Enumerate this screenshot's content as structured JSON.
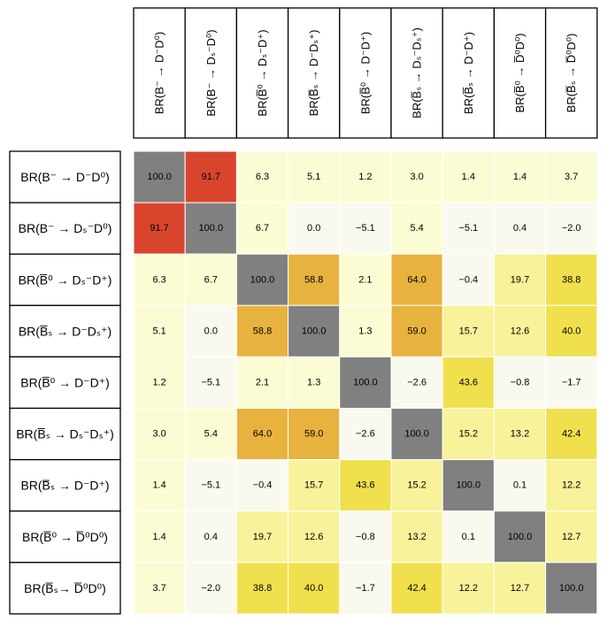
{
  "chart_data": {
    "type": "heatmap",
    "title": "",
    "column_labels": [
      "BR(B⁻ → D⁻D⁰)",
      "BR(B⁻ → Dₛ⁻D⁰)",
      "BR(B̅⁰ → Dₛ⁻D⁺)",
      "BR(B̅ₛ → D⁻Dₛ⁺)",
      "BR(B̅⁰ → D⁻D⁺)",
      "BR(B̅ₛ → Dₛ⁻Dₛ⁺)",
      "BR(B̅ₛ → D⁻D⁺)",
      "BR(B̅⁰ → D̅⁰D⁰)",
      "BR(B̅ₛ → D̅⁰D⁰)"
    ],
    "row_labels": [
      "BR(B⁻ → D⁻D⁰)",
      "BR(B⁻ → Dₛ⁻D⁰)",
      "BR(B̅⁰ → Dₛ⁻D⁺)",
      "BR(B̅ₛ → D⁻Dₛ⁺)",
      "BR(B̅⁰ → D⁻D⁺)",
      "BR(B̅ₛ → Dₛ⁻Dₛ⁺)",
      "BR(B̅ₛ → D⁻D⁺)",
      "BR(B̅⁰ → D̅⁰D⁰)",
      "BR(B̅ₛ→ D̅⁰D⁰)"
    ],
    "values": [
      [
        100.0,
        91.7,
        6.3,
        5.1,
        1.2,
        3.0,
        1.4,
        1.4,
        3.7
      ],
      [
        91.7,
        100.0,
        6.7,
        -0.0,
        -5.1,
        5.4,
        -5.1,
        0.4,
        -2.0
      ],
      [
        6.3,
        6.7,
        100.0,
        58.8,
        2.1,
        64.0,
        -0.4,
        19.7,
        38.8
      ],
      [
        5.1,
        -0.0,
        58.8,
        100.0,
        1.3,
        59.0,
        15.7,
        12.6,
        40.0
      ],
      [
        1.2,
        -5.1,
        2.1,
        1.3,
        100.0,
        -2.6,
        43.6,
        -0.8,
        -1.7
      ],
      [
        3.0,
        5.4,
        64.0,
        59.0,
        -2.6,
        100.0,
        15.2,
        13.2,
        42.4
      ],
      [
        1.4,
        -5.1,
        -0.4,
        15.7,
        43.6,
        15.2,
        100.0,
        0.1,
        12.2
      ],
      [
        1.4,
        0.4,
        19.7,
        12.6,
        -0.8,
        13.2,
        0.1,
        100.0,
        12.7
      ],
      [
        3.7,
        -2.0,
        38.8,
        40.0,
        -1.7,
        42.4,
        12.2,
        12.7,
        100.0
      ]
    ],
    "value_format": "one decimal",
    "diagonal_color": "#808080",
    "color_scale": [
      {
        "min": 80,
        "color": "#d9452c"
      },
      {
        "min": 55,
        "color": "#e8b23e"
      },
      {
        "min": 30,
        "color": "#f1e04d"
      },
      {
        "min": 10,
        "color": "#f8f29a"
      },
      {
        "min": 1,
        "color": "#fcfcd4"
      },
      {
        "min": -100,
        "color": "#f9f9ef"
      }
    ]
  }
}
